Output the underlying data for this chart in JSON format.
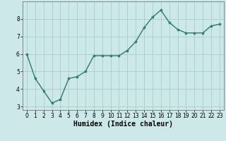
{
  "x": [
    0,
    1,
    2,
    3,
    4,
    5,
    6,
    7,
    8,
    9,
    10,
    11,
    12,
    13,
    14,
    15,
    16,
    17,
    18,
    19,
    20,
    21,
    22,
    23
  ],
  "y": [
    6.0,
    4.6,
    3.9,
    3.2,
    3.4,
    4.6,
    4.7,
    5.0,
    5.9,
    5.9,
    5.9,
    5.9,
    6.2,
    6.7,
    7.5,
    8.1,
    8.5,
    7.8,
    7.4,
    7.2,
    7.2,
    7.2,
    7.6,
    7.7
  ],
  "line_color": "#2d7a6e",
  "marker": "*",
  "marker_size": 3,
  "bg_color": "#cce8e8",
  "grid_color": "#aacccc",
  "xlabel": "Humidex (Indice chaleur)",
  "xlim": [
    -0.5,
    23.5
  ],
  "ylim": [
    2.8,
    9.0
  ],
  "yticks": [
    3,
    4,
    5,
    6,
    7,
    8
  ],
  "xticks": [
    0,
    1,
    2,
    3,
    4,
    5,
    6,
    7,
    8,
    9,
    10,
    11,
    12,
    13,
    14,
    15,
    16,
    17,
    18,
    19,
    20,
    21,
    22,
    23
  ],
  "tick_label_fontsize": 5.5,
  "xlabel_fontsize": 7,
  "linewidth": 1.0
}
